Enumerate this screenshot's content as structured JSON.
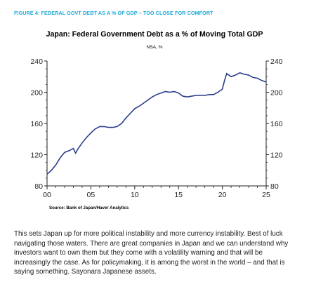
{
  "figure_label": "FIGURE 4: FEDERAL GOVT DEBT AS A % OF GDP – TOO CLOSE FOR COMFORT",
  "colors": {
    "figure_label": "#1aa7d6",
    "line": "#2b3d8c",
    "axis": "#222222"
  },
  "chart_data": {
    "type": "line",
    "title": "Japan: Federal Government Debt as a % of Moving Total GDP",
    "subtitle": "NSA, %",
    "xlabel": "",
    "ylabel": "",
    "xlim": [
      2000,
      2025
    ],
    "ylim": [
      80,
      240
    ],
    "x_ticks": [
      2000,
      2005,
      2010,
      2015,
      2020,
      2025
    ],
    "x_tick_labels": [
      "00",
      "05",
      "10",
      "15",
      "20",
      "25"
    ],
    "y_ticks": [
      80,
      120,
      160,
      200,
      240
    ],
    "source": "Source:  Bank of Japan/Haver Analytics",
    "series": [
      {
        "x": [
          2000.0,
          2000.5,
          2001.0,
          2001.5,
          2002.0,
          2002.5,
          2003.0,
          2003.25,
          2003.5,
          2004.0,
          2004.5,
          2005.0,
          2005.5,
          2006.0,
          2006.5,
          2007.0,
          2007.5,
          2008.0,
          2008.5,
          2009.0,
          2009.5,
          2010.0,
          2010.5,
          2011.0,
          2011.5,
          2012.0,
          2012.5,
          2013.0,
          2013.5,
          2014.0,
          2014.5,
          2015.0,
          2015.5,
          2016.0,
          2016.5,
          2017.0,
          2017.5,
          2018.0,
          2018.5,
          2019.0,
          2019.5,
          2020.0,
          2020.25,
          2020.5,
          2021.0,
          2021.5,
          2022.0,
          2022.5,
          2023.0,
          2023.5,
          2024.0,
          2024.5,
          2025.0
        ],
        "y": [
          95,
          100,
          107,
          116,
          123,
          125,
          128,
          122,
          127,
          135,
          142,
          148,
          153,
          156,
          156,
          155,
          155,
          156,
          160,
          167,
          173,
          179,
          182,
          186,
          190,
          194,
          197,
          199,
          201,
          200,
          201,
          199,
          195,
          194,
          195,
          196,
          196,
          196,
          197,
          197,
          200,
          204,
          215,
          224,
          220,
          222,
          225,
          223,
          222,
          219,
          218,
          215,
          213
        ]
      }
    ]
  },
  "paragraph": "This sets Japan up for more political instability and more currency instability. Best of luck navigating those waters. There are great companies in Japan and we can understand why investors want to own them but they come with a volatility warning and that will be increasingly the case. As for policymaking, it is among the worst in the world – and that is saying something. Sayonara Japanese assets."
}
